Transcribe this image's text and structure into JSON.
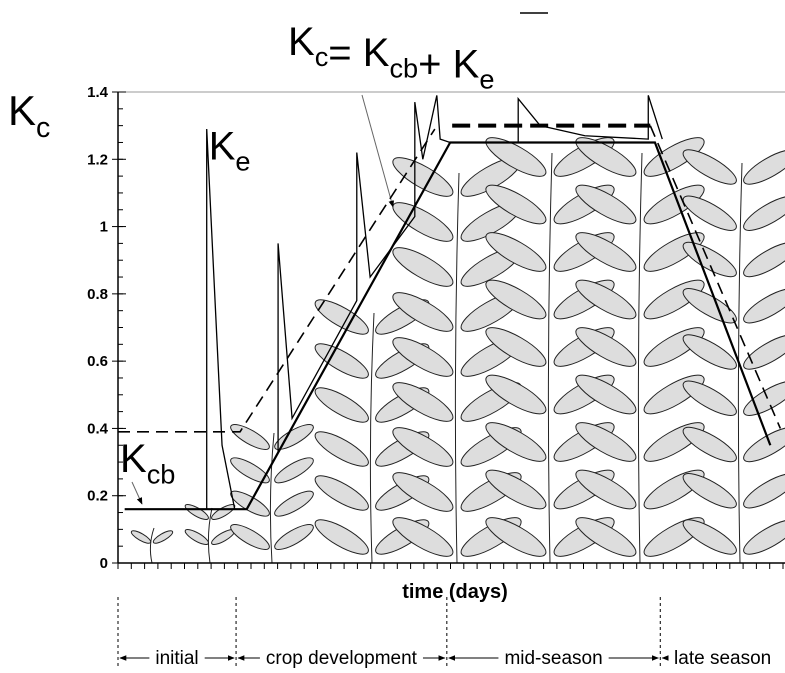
{
  "chart_data": {
    "type": "line",
    "title": [
      {
        "text": "K",
        "sub": "c"
      },
      {
        "text": "= K",
        "sub": "cb"
      },
      {
        "text": "+ K",
        "sub": "e"
      }
    ],
    "y_label": {
      "text": "K",
      "sub": "c"
    },
    "x_label": "time (days)",
    "xlim": [
      0,
      100
    ],
    "ylim": [
      0,
      1.4
    ],
    "yticks": [
      0,
      0.2,
      0.4,
      0.6,
      0.8,
      1,
      1.2,
      1.4
    ],
    "annotations": [
      {
        "text": "K",
        "sub": "e",
        "x": 13.6,
        "y": 1.2
      },
      {
        "text": "K",
        "sub": "cb",
        "x": 0.3,
        "y": 0.27
      }
    ],
    "series": [
      {
        "style": "solid",
        "width": 2.2,
        "color": "#000",
        "x": [
          1.0,
          19.3,
          49.8,
          80.5,
          97.8
        ],
        "values": [
          0.16,
          0.16,
          1.25,
          1.25,
          0.35
        ]
      },
      {
        "style": "dashed",
        "width": 1.6,
        "color": "#000",
        "x": [
          0,
          18.3,
          47.5,
          null,
          79.8,
          99.3
        ],
        "values": [
          0.39,
          0.39,
          1.29,
          null,
          1.3,
          0.4
        ]
      },
      {
        "style": "dashed",
        "width": 4,
        "color": "#000",
        "x": [
          50.1,
          79.8
        ],
        "values": [
          1.3,
          1.3
        ]
      },
      {
        "style": "solid",
        "width": 1.3,
        "color": "#000",
        "x": [
          13.3,
          13.3,
          15.6,
          17.5,
          null,
          24.0,
          24.0,
          26.1,
          35.8,
          35.8,
          37.8,
          44.5,
          44.5,
          45.7,
          47.8,
          48.3,
          49.8,
          60.0,
          60.0,
          63.3,
          70.0,
          79.5,
          79.5,
          81.6
        ],
        "values": [
          0.16,
          1.29,
          0.35,
          0.16,
          null,
          0.33,
          0.95,
          0.43,
          0.78,
          1.22,
          0.85,
          1.03,
          1.37,
          1.2,
          1.39,
          1.26,
          1.25,
          1.25,
          1.38,
          1.3,
          1.27,
          1.26,
          1.39,
          1.26
        ]
      }
    ],
    "stages": [
      {
        "label": "initial",
        "start": 0,
        "end": 17.7
      },
      {
        "label": "crop development",
        "start": 17.7,
        "end": 49.3
      },
      {
        "label": "mid-season",
        "start": 49.3,
        "end": 81.3
      },
      {
        "label": "late season",
        "start": 81.3,
        "end": 100
      }
    ]
  }
}
